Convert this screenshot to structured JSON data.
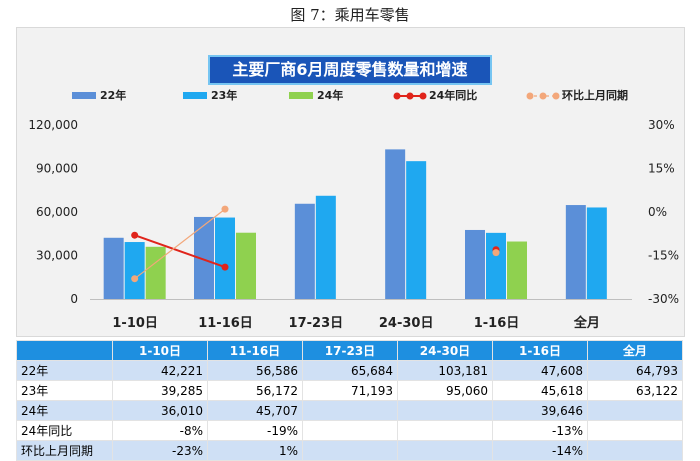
{
  "caption": "图 7：乘用车零售",
  "chart_data": {
    "type": "bar",
    "title": "主要厂商6月周度零售数量和增速",
    "categories": [
      "1-10日",
      "11-16日",
      "17-23日",
      "24-30日",
      "1-16日",
      "全月"
    ],
    "series": [
      {
        "name": "22年",
        "type": "bar",
        "axis": "left",
        "color": "#5b8fd8",
        "values": [
          42221,
          56586,
          65684,
          103181,
          47608,
          64793
        ]
      },
      {
        "name": "23年",
        "type": "bar",
        "axis": "left",
        "color": "#1fa8f0",
        "values": [
          39285,
          56172,
          71193,
          95060,
          45618,
          63122
        ]
      },
      {
        "name": "24年",
        "type": "bar",
        "axis": "left",
        "color": "#8fd14f",
        "values": [
          36010,
          45707,
          null,
          null,
          39646,
          null
        ]
      },
      {
        "name": "24年同比",
        "type": "line",
        "axis": "right",
        "color": "#e0241b",
        "values": [
          -0.08,
          -0.19,
          null,
          null,
          -0.13,
          null
        ]
      },
      {
        "name": "环比上月同期",
        "type": "line",
        "axis": "right",
        "color": "#f3a77a",
        "values": [
          -0.23,
          0.01,
          null,
          null,
          -0.14,
          null
        ]
      }
    ],
    "y_left": {
      "ylim": [
        0,
        120000
      ],
      "ticks": [
        "0",
        "30,000",
        "60,000",
        "90,000",
        "120,000"
      ]
    },
    "y_right": {
      "ylim": [
        -0.3,
        0.3
      ],
      "ticks": [
        "-30%",
        "-15%",
        "0%",
        "15%",
        "30%"
      ]
    },
    "legend_position": "top",
    "grid": false
  },
  "table": {
    "headers": [
      "",
      "1-10日",
      "11-16日",
      "17-23日",
      "24-30日",
      "1-16日",
      "全月"
    ],
    "rows": [
      {
        "label": "22年",
        "cells": [
          "42,221",
          "56,586",
          "65,684",
          "103,181",
          "47,608",
          "64,793"
        ]
      },
      {
        "label": "23年",
        "cells": [
          "39,285",
          "56,172",
          "71,193",
          "95,060",
          "45,618",
          "63,122"
        ]
      },
      {
        "label": "24年",
        "cells": [
          "36,010",
          "45,707",
          "",
          "",
          "39,646",
          ""
        ]
      },
      {
        "label": "24年同比",
        "cells": [
          "-8%",
          "-19%",
          "",
          "",
          "-13%",
          ""
        ]
      },
      {
        "label": "环比上月同期",
        "cells": [
          "-23%",
          "1%",
          "",
          "",
          "-14%",
          ""
        ]
      }
    ]
  }
}
